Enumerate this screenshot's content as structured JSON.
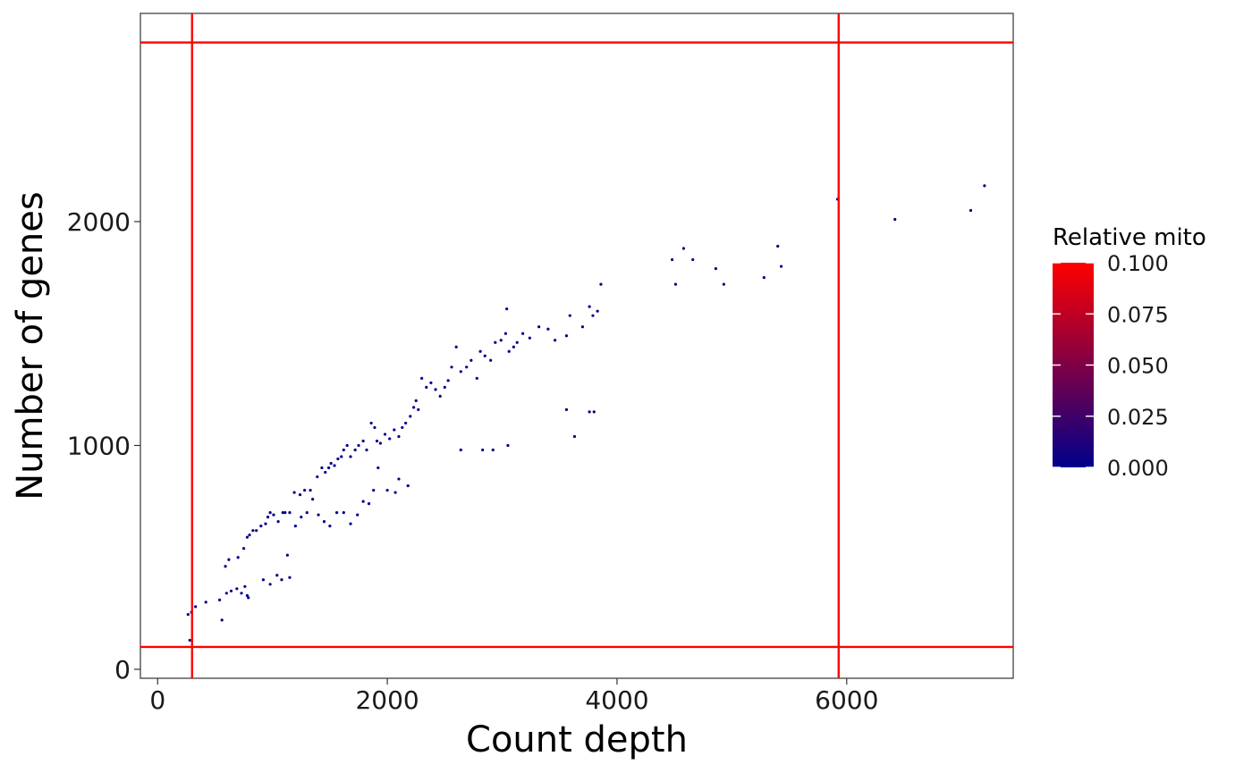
{
  "chart_data": {
    "type": "scatter",
    "xlabel": "Count depth",
    "ylabel": "Number of genes",
    "xlim": [
      -150,
      7450
    ],
    "ylim": [
      -40,
      2930
    ],
    "x_ticks": [
      0,
      2000,
      4000,
      6000
    ],
    "y_ticks": [
      0,
      1000,
      2000
    ],
    "x_tick_labels": [
      "0",
      "2000",
      "4000",
      "6000"
    ],
    "y_tick_labels": [
      "0",
      "1000",
      "2000"
    ],
    "grid": false,
    "point_color": "#00008B",
    "threshold_line_color": "#FF0000",
    "vertical_lines": [
      300,
      5930
    ],
    "horizontal_lines": [
      100,
      2800
    ],
    "legend": {
      "title": "Relative mito",
      "placement": "right",
      "type": "gradient",
      "low_color": "#00008B",
      "high_color": "#FF0000",
      "breaks": [
        0.0,
        0.025,
        0.05,
        0.075,
        0.1
      ],
      "break_labels": [
        "0.000",
        "0.025",
        "0.050",
        "0.075",
        "0.100"
      ]
    },
    "points": [
      [
        265,
        245
      ],
      [
        280,
        130
      ],
      [
        295,
        255
      ],
      [
        330,
        280
      ],
      [
        420,
        300
      ],
      [
        540,
        310
      ],
      [
        560,
        220
      ],
      [
        600,
        340
      ],
      [
        640,
        350
      ],
      [
        690,
        360
      ],
      [
        730,
        340
      ],
      [
        760,
        370
      ],
      [
        780,
        330
      ],
      [
        790,
        320
      ],
      [
        590,
        460
      ],
      [
        620,
        490
      ],
      [
        700,
        500
      ],
      [
        750,
        540
      ],
      [
        780,
        590
      ],
      [
        800,
        600
      ],
      [
        830,
        620
      ],
      [
        860,
        620
      ],
      [
        900,
        640
      ],
      [
        940,
        650
      ],
      [
        960,
        680
      ],
      [
        980,
        700
      ],
      [
        1010,
        690
      ],
      [
        1050,
        660
      ],
      [
        1090,
        700
      ],
      [
        1110,
        700
      ],
      [
        1150,
        700
      ],
      [
        1190,
        790
      ],
      [
        1240,
        780
      ],
      [
        1280,
        800
      ],
      [
        1330,
        800
      ],
      [
        1390,
        860
      ],
      [
        1430,
        900
      ],
      [
        1460,
        880
      ],
      [
        1490,
        900
      ],
      [
        1510,
        920
      ],
      [
        1540,
        910
      ],
      [
        1570,
        940
      ],
      [
        1600,
        950
      ],
      [
        1620,
        980
      ],
      [
        1650,
        1000
      ],
      [
        1680,
        950
      ],
      [
        1720,
        980
      ],
      [
        1750,
        1000
      ],
      [
        1790,
        1020
      ],
      [
        1820,
        980
      ],
      [
        1860,
        1100
      ],
      [
        1890,
        1080
      ],
      [
        1910,
        1020
      ],
      [
        1940,
        1010
      ],
      [
        1980,
        1050
      ],
      [
        2020,
        1030
      ],
      [
        2060,
        1070
      ],
      [
        2100,
        1040
      ],
      [
        2130,
        1080
      ],
      [
        2160,
        1100
      ],
      [
        2200,
        1130
      ],
      [
        2230,
        1170
      ],
      [
        2250,
        1200
      ],
      [
        2270,
        1160
      ],
      [
        2300,
        1300
      ],
      [
        2340,
        1260
      ],
      [
        2380,
        1280
      ],
      [
        2420,
        1250
      ],
      [
        2460,
        1220
      ],
      [
        2500,
        1260
      ],
      [
        2530,
        1290
      ],
      [
        2560,
        1350
      ],
      [
        2600,
        1440
      ],
      [
        2640,
        1330
      ],
      [
        2690,
        1350
      ],
      [
        2730,
        1380
      ],
      [
        2780,
        1300
      ],
      [
        2810,
        1420
      ],
      [
        2850,
        1400
      ],
      [
        2900,
        1380
      ],
      [
        2940,
        1460
      ],
      [
        2990,
        1470
      ],
      [
        3030,
        1500
      ],
      [
        3060,
        1420
      ],
      [
        3100,
        1440
      ],
      [
        3130,
        1460
      ],
      [
        3180,
        1500
      ],
      [
        3240,
        1480
      ],
      [
        3320,
        1530
      ],
      [
        3400,
        1520
      ],
      [
        3460,
        1470
      ],
      [
        3560,
        1490
      ],
      [
        3590,
        1580
      ],
      [
        3700,
        1530
      ],
      [
        3760,
        1620
      ],
      [
        3790,
        1580
      ],
      [
        3830,
        1600
      ],
      [
        3860,
        1720
      ],
      [
        3040,
        1610
      ],
      [
        1200,
        640
      ],
      [
        1250,
        680
      ],
      [
        1300,
        700
      ],
      [
        1350,
        760
      ],
      [
        1400,
        690
      ],
      [
        1450,
        660
      ],
      [
        1500,
        640
      ],
      [
        1560,
        700
      ],
      [
        1620,
        700
      ],
      [
        1680,
        650
      ],
      [
        1740,
        690
      ],
      [
        1790,
        750
      ],
      [
        1840,
        740
      ],
      [
        1880,
        800
      ],
      [
        1920,
        900
      ],
      [
        2000,
        800
      ],
      [
        2070,
        790
      ],
      [
        2100,
        850
      ],
      [
        2180,
        820
      ],
      [
        920,
        400
      ],
      [
        980,
        380
      ],
      [
        1040,
        420
      ],
      [
        1080,
        400
      ],
      [
        1130,
        510
      ],
      [
        1150,
        410
      ],
      [
        2640,
        980
      ],
      [
        2830,
        980
      ],
      [
        2920,
        980
      ],
      [
        3050,
        1000
      ],
      [
        3560,
        1160
      ],
      [
        3630,
        1040
      ],
      [
        3760,
        1150
      ],
      [
        3800,
        1150
      ],
      [
        4480,
        1830
      ],
      [
        4510,
        1720
      ],
      [
        4580,
        1880
      ],
      [
        4660,
        1830
      ],
      [
        4860,
        1790
      ],
      [
        4930,
        1720
      ],
      [
        5280,
        1750
      ],
      [
        5400,
        1890
      ],
      [
        5430,
        1800
      ],
      [
        5920,
        2100
      ],
      [
        6420,
        2010
      ],
      [
        7080,
        2050
      ],
      [
        7200,
        2160
      ]
    ]
  }
}
